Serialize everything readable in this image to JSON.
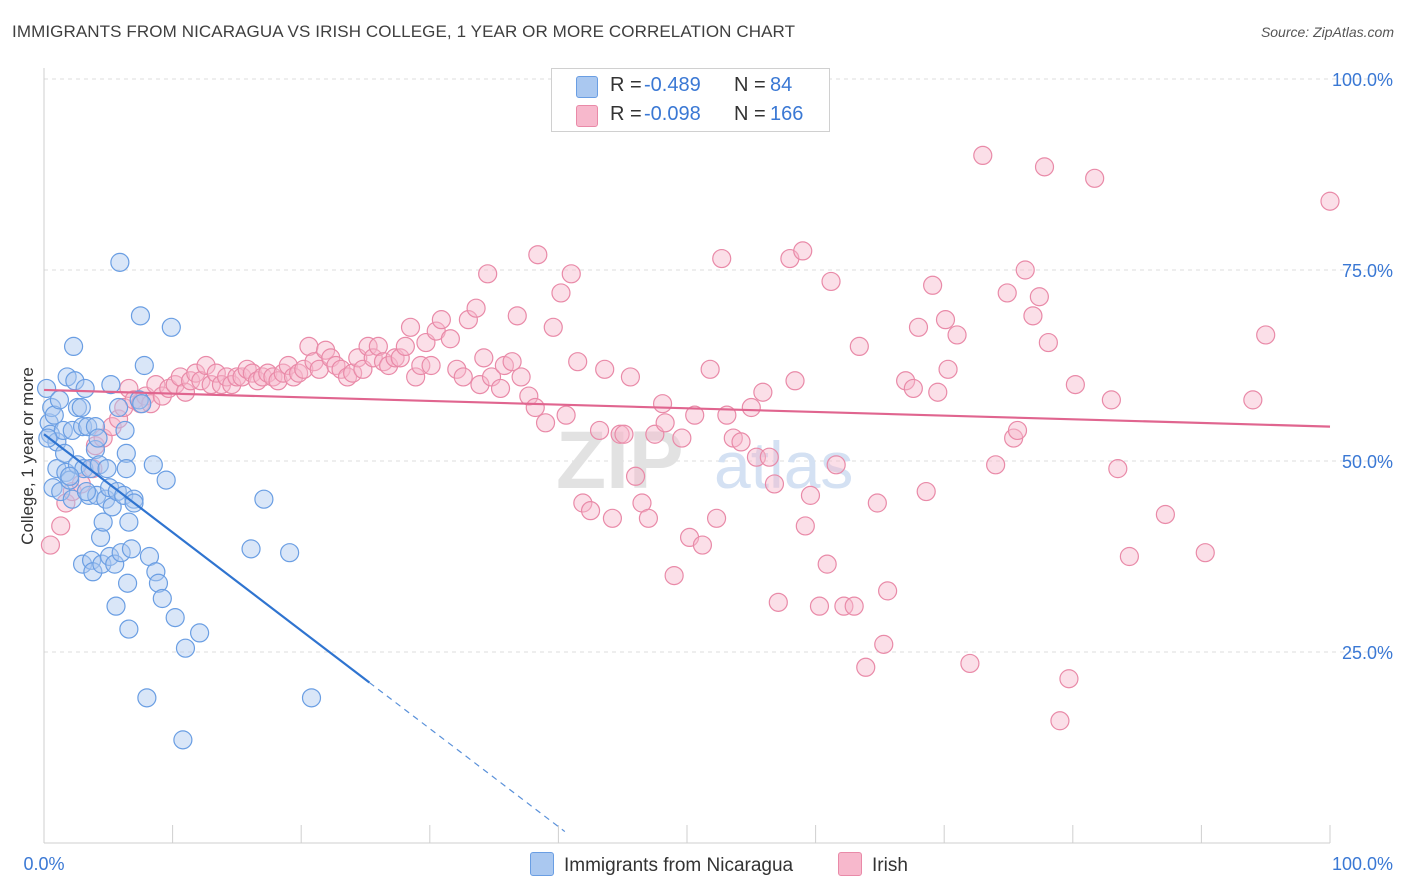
{
  "title": "IMMIGRANTS FROM NICARAGUA VS IRISH COLLEGE, 1 YEAR OR MORE CORRELATION CHART",
  "source": "Source: ZipAtlas.com",
  "watermark": {
    "zip": "ZIP",
    "atlas": "atlas"
  },
  "legend": {
    "series": [
      {
        "swatch_color": "#aac8f0",
        "r_label": "R =",
        "r_value": "-0.489",
        "n_label": "N =",
        "n_value": "84"
      },
      {
        "swatch_color": "#f7b8cc",
        "r_label": "R =",
        "r_value": "-0.098",
        "n_label": "N =",
        "n_value": "166"
      }
    ]
  },
  "bottom_legend": [
    {
      "label": "Immigrants from Nicaragua",
      "color": "#aac8f0"
    },
    {
      "label": "Irish",
      "color": "#f7b8cc"
    }
  ],
  "chart_data": {
    "type": "scatter",
    "title": "IMMIGRANTS FROM NICARAGUA VS IRISH COLLEGE, 1 YEAR OR MORE CORRELATION CHART",
    "xlabel": "",
    "ylabel": "College, 1 year or more",
    "xlim": [
      0,
      100
    ],
    "ylim": [
      0,
      100
    ],
    "x_tick_labels": [
      "0.0%",
      "100.0%"
    ],
    "y_tick_labels": [
      "25.0%",
      "50.0%",
      "75.0%",
      "100.0%"
    ],
    "y_ticks": [
      25,
      50,
      75,
      100
    ],
    "grid": "horizontal dashed",
    "legend_position": "top-center",
    "series": [
      {
        "name": "Immigrants from Nicaragua",
        "color": "#aac8f0",
        "stroke": "#6a9ee3",
        "R": -0.489,
        "N": 84,
        "trend": {
          "x0": 0.0,
          "y0": 53.5,
          "x1": 25.3,
          "y1": 21.0,
          "dash_to_x": 40.5,
          "dash_to_y": 1.5
        },
        "points": [
          [
            0.2,
            59.5
          ],
          [
            0.4,
            55.0
          ],
          [
            0.5,
            53.5
          ],
          [
            0.6,
            57.0
          ],
          [
            0.8,
            56.0
          ],
          [
            1.0,
            52.5
          ],
          [
            0.7,
            46.5
          ],
          [
            1.0,
            49.0
          ],
          [
            1.2,
            58.0
          ],
          [
            1.5,
            54.0
          ],
          [
            1.7,
            48.5
          ],
          [
            1.3,
            46.0
          ],
          [
            1.6,
            51.0
          ],
          [
            1.8,
            61.0
          ],
          [
            2.0,
            47.5
          ],
          [
            2.2,
            45.0
          ],
          [
            2.2,
            54.0
          ],
          [
            2.3,
            65.0
          ],
          [
            2.4,
            60.5
          ],
          [
            2.6,
            57.0
          ],
          [
            2.6,
            49.5
          ],
          [
            2.9,
            57.0
          ],
          [
            3.0,
            54.5
          ],
          [
            3.1,
            49.0
          ],
          [
            3.0,
            36.5
          ],
          [
            3.2,
            59.5
          ],
          [
            3.4,
            54.5
          ],
          [
            3.5,
            45.5
          ],
          [
            3.6,
            49.0
          ],
          [
            3.7,
            37.0
          ],
          [
            3.8,
            35.5
          ],
          [
            4.0,
            54.5
          ],
          [
            4.0,
            51.5
          ],
          [
            4.1,
            45.5
          ],
          [
            4.2,
            53.0
          ],
          [
            4.3,
            49.5
          ],
          [
            4.4,
            40.0
          ],
          [
            4.5,
            36.5
          ],
          [
            4.6,
            42.0
          ],
          [
            4.8,
            45.0
          ],
          [
            4.9,
            49.0
          ],
          [
            5.1,
            46.5
          ],
          [
            5.1,
            37.5
          ],
          [
            5.2,
            60.0
          ],
          [
            5.3,
            44.0
          ],
          [
            5.5,
            36.5
          ],
          [
            5.6,
            31.0
          ],
          [
            5.7,
            46.0
          ],
          [
            5.8,
            57.0
          ],
          [
            5.9,
            76.0
          ],
          [
            6.0,
            38.0
          ],
          [
            6.2,
            45.5
          ],
          [
            6.3,
            54.0
          ],
          [
            6.4,
            51.0
          ],
          [
            6.4,
            49.0
          ],
          [
            6.5,
            34.0
          ],
          [
            6.6,
            42.0
          ],
          [
            6.6,
            28.0
          ],
          [
            6.8,
            38.5
          ],
          [
            7.0,
            45.0
          ],
          [
            7.0,
            44.5
          ],
          [
            7.4,
            58.0
          ],
          [
            7.5,
            69.0
          ],
          [
            7.6,
            57.5
          ],
          [
            7.8,
            62.5
          ],
          [
            8.2,
            37.5
          ],
          [
            8.5,
            49.5
          ],
          [
            8.7,
            35.5
          ],
          [
            8.9,
            34.0
          ],
          [
            9.2,
            32.0
          ],
          [
            9.5,
            47.5
          ],
          [
            9.9,
            67.5
          ],
          [
            10.2,
            29.5
          ],
          [
            10.8,
            13.5
          ],
          [
            11.0,
            25.5
          ],
          [
            12.1,
            27.5
          ],
          [
            8.0,
            19.0
          ],
          [
            16.1,
            38.5
          ],
          [
            17.1,
            45.0
          ],
          [
            19.1,
            38.0
          ],
          [
            20.8,
            19.0
          ],
          [
            3.3,
            46.0
          ],
          [
            2.0,
            48.0
          ],
          [
            0.3,
            53.0
          ]
        ]
      },
      {
        "name": "Irish",
        "color": "#f7b8cc",
        "stroke": "#e98aa8",
        "R": -0.098,
        "N": 166,
        "trend": {
          "x0": 0.0,
          "y0": 59.3,
          "x1": 100.0,
          "y1": 54.5
        },
        "points": [
          [
            0.5,
            39.0
          ],
          [
            1.3,
            41.5
          ],
          [
            1.7,
            44.5
          ],
          [
            2.2,
            46.0
          ],
          [
            2.9,
            47.0
          ],
          [
            3.8,
            49.0
          ],
          [
            4.0,
            52.0
          ],
          [
            4.6,
            53.0
          ],
          [
            5.3,
            54.5
          ],
          [
            5.8,
            55.5
          ],
          [
            6.2,
            57.0
          ],
          [
            6.6,
            59.5
          ],
          [
            7.0,
            58.0
          ],
          [
            7.5,
            57.5
          ],
          [
            7.9,
            58.5
          ],
          [
            8.3,
            57.5
          ],
          [
            8.7,
            60.0
          ],
          [
            9.2,
            58.5
          ],
          [
            9.7,
            59.5
          ],
          [
            10.2,
            60.0
          ],
          [
            10.6,
            61.0
          ],
          [
            11.0,
            59.0
          ],
          [
            11.4,
            60.5
          ],
          [
            11.8,
            61.5
          ],
          [
            12.2,
            60.5
          ],
          [
            12.6,
            62.5
          ],
          [
            13.0,
            60.0
          ],
          [
            13.4,
            61.5
          ],
          [
            13.8,
            60.0
          ],
          [
            14.2,
            61.0
          ],
          [
            14.6,
            60.0
          ],
          [
            15.0,
            61.0
          ],
          [
            15.4,
            61.0
          ],
          [
            15.8,
            62.0
          ],
          [
            16.2,
            61.5
          ],
          [
            16.6,
            60.5
          ],
          [
            17.0,
            61.0
          ],
          [
            17.4,
            61.5
          ],
          [
            17.8,
            61.0
          ],
          [
            18.2,
            60.5
          ],
          [
            18.6,
            61.5
          ],
          [
            19.0,
            62.5
          ],
          [
            19.4,
            61.0
          ],
          [
            19.8,
            61.5
          ],
          [
            20.2,
            62.0
          ],
          [
            20.6,
            65.0
          ],
          [
            21.0,
            63.0
          ],
          [
            21.4,
            62.0
          ],
          [
            21.9,
            64.5
          ],
          [
            22.3,
            63.5
          ],
          [
            22.7,
            62.5
          ],
          [
            23.1,
            62.0
          ],
          [
            23.6,
            61.0
          ],
          [
            24.0,
            61.5
          ],
          [
            24.4,
            63.5
          ],
          [
            24.8,
            62.0
          ],
          [
            25.2,
            65.0
          ],
          [
            25.6,
            63.5
          ],
          [
            26.0,
            65.0
          ],
          [
            26.4,
            63.0
          ],
          [
            26.8,
            62.5
          ],
          [
            27.3,
            63.5
          ],
          [
            27.7,
            63.5
          ],
          [
            28.1,
            65.0
          ],
          [
            28.5,
            67.5
          ],
          [
            28.9,
            61.0
          ],
          [
            29.3,
            62.5
          ],
          [
            29.7,
            65.5
          ],
          [
            30.1,
            62.5
          ],
          [
            30.5,
            67.0
          ],
          [
            30.9,
            68.5
          ],
          [
            31.6,
            66.0
          ],
          [
            32.1,
            62.0
          ],
          [
            32.6,
            61.0
          ],
          [
            33.0,
            68.5
          ],
          [
            33.6,
            70.0
          ],
          [
            33.9,
            60.0
          ],
          [
            34.2,
            63.5
          ],
          [
            34.8,
            61.0
          ],
          [
            34.5,
            74.5
          ],
          [
            35.5,
            59.5
          ],
          [
            35.8,
            62.5
          ],
          [
            36.4,
            63.0
          ],
          [
            36.8,
            69.0
          ],
          [
            37.1,
            61.0
          ],
          [
            37.7,
            58.5
          ],
          [
            38.2,
            57.0
          ],
          [
            38.4,
            77.0
          ],
          [
            39.0,
            55.0
          ],
          [
            39.6,
            67.5
          ],
          [
            40.2,
            72.0
          ],
          [
            40.6,
            56.0
          ],
          [
            41.0,
            74.5
          ],
          [
            41.5,
            63.0
          ],
          [
            41.9,
            44.5
          ],
          [
            42.5,
            43.5
          ],
          [
            43.2,
            54.0
          ],
          [
            43.6,
            62.0
          ],
          [
            44.2,
            42.5
          ],
          [
            44.8,
            53.5
          ],
          [
            45.1,
            53.5
          ],
          [
            45.6,
            61.0
          ],
          [
            46.0,
            48.0
          ],
          [
            46.5,
            44.5
          ],
          [
            47.0,
            42.5
          ],
          [
            47.5,
            53.5
          ],
          [
            48.1,
            57.5
          ],
          [
            48.3,
            55.0
          ],
          [
            49.0,
            35.0
          ],
          [
            49.6,
            53.0
          ],
          [
            50.2,
            40.0
          ],
          [
            50.6,
            56.0
          ],
          [
            51.2,
            39.0
          ],
          [
            51.8,
            62.0
          ],
          [
            52.3,
            42.5
          ],
          [
            52.7,
            76.5
          ],
          [
            53.1,
            56.0
          ],
          [
            53.6,
            53.0
          ],
          [
            54.2,
            52.5
          ],
          [
            55.0,
            57.0
          ],
          [
            55.4,
            50.5
          ],
          [
            55.9,
            59.0
          ],
          [
            56.4,
            50.5
          ],
          [
            56.8,
            47.0
          ],
          [
            57.1,
            31.5
          ],
          [
            58.0,
            76.5
          ],
          [
            58.4,
            60.5
          ],
          [
            59.0,
            77.5
          ],
          [
            59.2,
            41.5
          ],
          [
            59.6,
            45.5
          ],
          [
            60.3,
            31.0
          ],
          [
            60.9,
            36.5
          ],
          [
            61.2,
            73.5
          ],
          [
            61.6,
            49.5
          ],
          [
            62.2,
            31.0
          ],
          [
            63.0,
            31.0
          ],
          [
            63.4,
            65.0
          ],
          [
            63.9,
            23.0
          ],
          [
            64.8,
            44.5
          ],
          [
            65.3,
            26.0
          ],
          [
            65.6,
            33.0
          ],
          [
            67.0,
            60.5
          ],
          [
            67.6,
            59.5
          ],
          [
            68.0,
            67.5
          ],
          [
            68.6,
            46.0
          ],
          [
            69.1,
            73.0
          ],
          [
            69.5,
            59.0
          ],
          [
            70.1,
            68.5
          ],
          [
            70.3,
            62.0
          ],
          [
            71.0,
            66.5
          ],
          [
            72.0,
            23.5
          ],
          [
            73.0,
            90.0
          ],
          [
            74.0,
            49.5
          ],
          [
            74.9,
            72.0
          ],
          [
            75.4,
            53.0
          ],
          [
            75.7,
            54.0
          ],
          [
            76.3,
            75.0
          ],
          [
            76.9,
            69.0
          ],
          [
            77.4,
            71.5
          ],
          [
            77.8,
            88.5
          ],
          [
            78.1,
            65.5
          ],
          [
            79.0,
            16.0
          ],
          [
            79.7,
            21.5
          ],
          [
            80.2,
            60.0
          ],
          [
            81.7,
            87.0
          ],
          [
            83.0,
            58.0
          ],
          [
            83.5,
            49.0
          ],
          [
            84.4,
            37.5
          ],
          [
            87.2,
            43.0
          ],
          [
            90.3,
            38.0
          ],
          [
            94.0,
            58.0
          ],
          [
            95.0,
            66.5
          ],
          [
            100.0,
            84.0
          ]
        ]
      }
    ]
  }
}
